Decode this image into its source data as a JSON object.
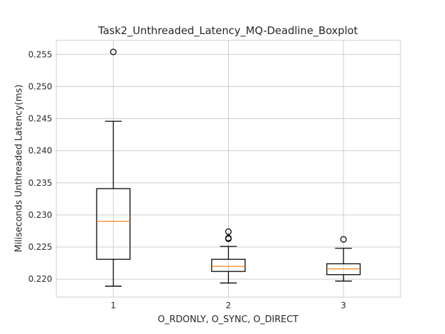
{
  "chart_data": {
    "type": "boxplot",
    "title": "Task2_Unthreaded_Latency_MQ-Deadline_Boxplot",
    "xlabel": "O_RDONLY, O_SYNC, O_DIRECT",
    "ylabel": "Miliseconds Unthreaded Latency(ms)",
    "ylim": [
      0.2172,
      0.2572
    ],
    "yticks": [
      "0.220",
      "0.225",
      "0.230",
      "0.235",
      "0.240",
      "0.245",
      "0.250",
      "0.255"
    ],
    "categories": [
      "1",
      "2",
      "3"
    ],
    "boxes": [
      {
        "whisker_low": 0.2189,
        "q1": 0.2231,
        "median": 0.229,
        "q3": 0.2341,
        "whisker_high": 0.2446,
        "outliers": [
          0.2554
        ]
      },
      {
        "whisker_low": 0.2194,
        "q1": 0.2212,
        "median": 0.222,
        "q3": 0.2231,
        "whisker_high": 0.2251,
        "outliers": [
          0.2263,
          0.2264,
          0.2274
        ]
      },
      {
        "whisker_low": 0.2197,
        "q1": 0.2207,
        "median": 0.2216,
        "q3": 0.2224,
        "whisker_high": 0.2248,
        "outliers": [
          0.2262
        ]
      }
    ],
    "grid": true,
    "colors": {
      "box": "#000000",
      "median": "#ff7f0e",
      "grid": "#cccccc",
      "axes": "#cccccc"
    }
  }
}
